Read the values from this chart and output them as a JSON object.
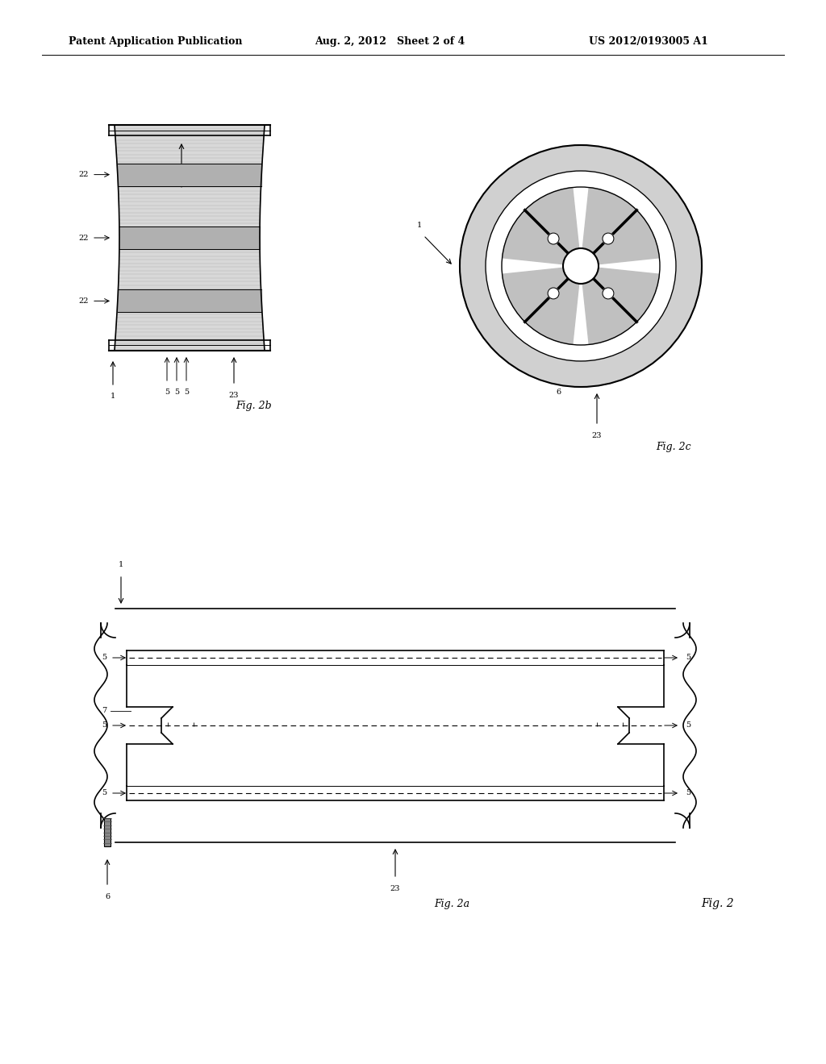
{
  "bg_color": "#ffffff",
  "header_left": "Patent Application Publication",
  "header_mid": "Aug. 2, 2012   Sheet 2 of 4",
  "header_right": "US 2012/0193005 A1",
  "header_fontsize": 9,
  "fig2b_label": "Fig. 2b",
  "fig2c_label": "Fig. 2c",
  "fig2a_label": "Fig. 2a",
  "fig2_label": "Fig. 2"
}
